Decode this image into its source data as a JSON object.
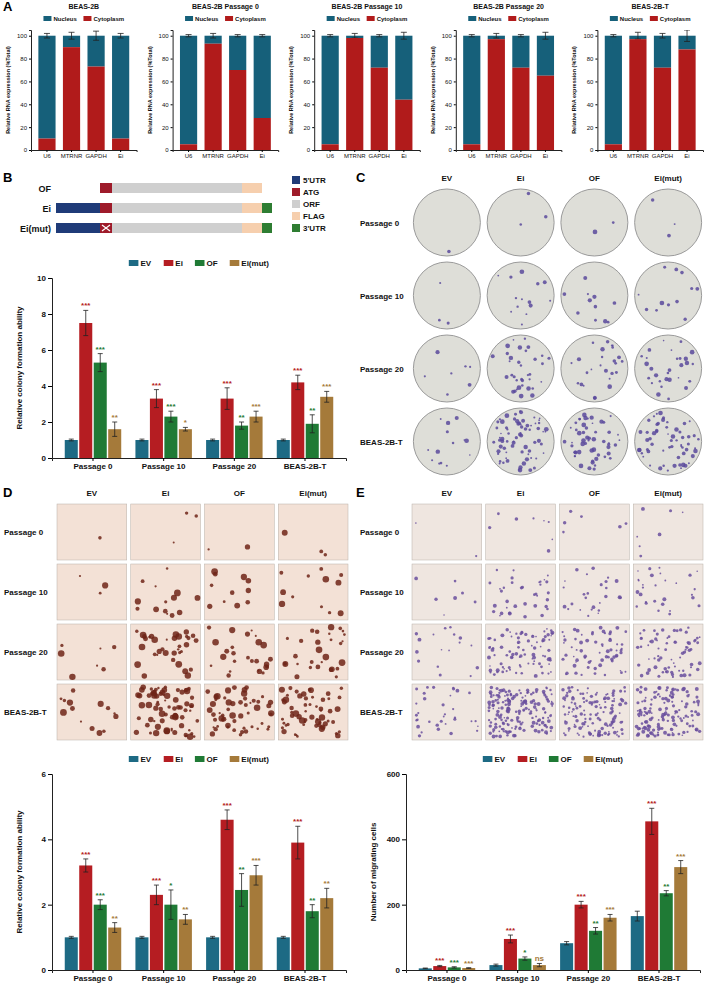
{
  "panel_labels": [
    "A",
    "B",
    "C",
    "D",
    "E"
  ],
  "chart_data": [
    {
      "type": "bar",
      "stacked": true,
      "title": "BEAS-2B",
      "categories": [
        "U6",
        "MTRNR",
        "GAPDH",
        "Ei"
      ],
      "series": [
        {
          "name": "Nucleus",
          "color": "#16607a",
          "values": [
            90,
            10,
            27,
            90
          ],
          "errors": [
            2,
            3,
            4,
            2
          ]
        },
        {
          "name": "Cytoplasm",
          "color": "#b11b1b",
          "values": [
            10,
            90,
            73,
            10
          ]
        }
      ],
      "ylim": [
        0,
        105
      ],
      "yticks": [
        0,
        20,
        40,
        60,
        80,
        100
      ],
      "y_label": "Relative RNA expression (%Total)",
      "legend": "top"
    },
    {
      "type": "bar",
      "stacked": true,
      "title": "BEAS-2B Passage 0",
      "categories": [
        "U6",
        "MTRNR",
        "GAPDH",
        "Ei"
      ],
      "series": [
        {
          "name": "Nucleus",
          "color": "#16607a",
          "values": [
            95,
            7,
            30,
            72
          ],
          "errors": [
            1,
            2,
            1,
            1
          ]
        },
        {
          "name": "Cytoplasm",
          "color": "#b11b1b",
          "values": [
            5,
            93,
            70,
            28
          ]
        }
      ],
      "ylim": [
        0,
        105
      ],
      "yticks": [
        0,
        20,
        40,
        60,
        80,
        100
      ],
      "y_label": "Relative RNA expression (%Total)",
      "legend": "top"
    },
    {
      "type": "bar",
      "stacked": true,
      "title": "BEAS-2B Passage 10",
      "categories": [
        "U6",
        "MTRNR",
        "GAPDH",
        "Ei"
      ],
      "series": [
        {
          "name": "Nucleus",
          "color": "#16607a",
          "values": [
            95,
            2,
            28,
            56
          ],
          "errors": [
            1,
            2,
            1,
            3
          ]
        },
        {
          "name": "Cytoplasm",
          "color": "#b11b1b",
          "values": [
            5,
            98,
            72,
            44
          ]
        }
      ],
      "ylim": [
        0,
        105
      ],
      "yticks": [
        0,
        20,
        40,
        60,
        80,
        100
      ],
      "y_label": "Relative RNA expression (%Total)",
      "legend": "top"
    },
    {
      "type": "bar",
      "stacked": true,
      "title": "BEAS-2B Passage 20",
      "categories": [
        "U6",
        "MTRNR",
        "GAPDH",
        "Ei"
      ],
      "series": [
        {
          "name": "Nucleus",
          "color": "#16607a",
          "values": [
            95,
            3,
            28,
            35
          ],
          "errors": [
            1,
            2,
            1,
            3
          ]
        },
        {
          "name": "Cytoplasm",
          "color": "#b11b1b",
          "values": [
            5,
            97,
            72,
            65
          ]
        }
      ],
      "ylim": [
        0,
        105
      ],
      "yticks": [
        0,
        20,
        40,
        60,
        80,
        100
      ],
      "y_label": "Relative RNA expression (%Total)",
      "legend": "top"
    },
    {
      "type": "bar",
      "stacked": true,
      "title": "BEAS-2B-T",
      "categories": [
        "U6",
        "MTRNR",
        "GAPDH",
        "Ei"
      ],
      "series": [
        {
          "name": "Nucleus",
          "color": "#16607a",
          "values": [
            95,
            3,
            28,
            12
          ],
          "errors": [
            1,
            3,
            2,
            5
          ]
        },
        {
          "name": "Cytoplasm",
          "color": "#b11b1b",
          "values": [
            5,
            97,
            72,
            88
          ]
        }
      ],
      "ylim": [
        0,
        105
      ],
      "yticks": [
        0,
        20,
        40,
        60,
        80,
        100
      ],
      "y_label": "Relative RNA expression (%Total)",
      "legend": "top"
    },
    {
      "type": "bar",
      "categories": [
        "Passage 0",
        "Passage 10",
        "Passage 20",
        "BEAS-2B-T"
      ],
      "series": [
        {
          "name": "EV",
          "color": "#1d6a84",
          "values": [
            1,
            1,
            1,
            1
          ],
          "errors": [
            0.05,
            0.05,
            0.05,
            0.05
          ]
        },
        {
          "name": "Ei",
          "color": "#b51d22",
          "values": [
            7.5,
            3.3,
            3.3,
            4.2
          ],
          "errors": [
            0.7,
            0.5,
            0.6,
            0.4
          ],
          "significance": [
            "***",
            "***",
            "***",
            "***"
          ]
        },
        {
          "name": "OF",
          "color": "#1f7a35",
          "values": [
            5.3,
            2.3,
            1.8,
            1.9
          ],
          "errors": [
            0.5,
            0.3,
            0.2,
            0.5
          ],
          "significance": [
            "***",
            "***",
            "**",
            "**"
          ]
        },
        {
          "name": "Ei(mut)",
          "color": "#a57a3a",
          "values": [
            1.6,
            1.6,
            2.3,
            3.4
          ],
          "errors": [
            0.4,
            0.1,
            0.3,
            0.3
          ],
          "significance": [
            "**",
            "*",
            "***",
            "***"
          ]
        }
      ],
      "ylim": [
        0,
        10
      ],
      "yticks": [
        0,
        2,
        4,
        6,
        8,
        10
      ],
      "y_label": "Relative colony formation ability",
      "legend": "top"
    },
    {
      "type": "bar",
      "categories": [
        "Passage 0",
        "Passage 10",
        "Passage 20",
        "BEAS-2B-T"
      ],
      "series": [
        {
          "name": "EV",
          "color": "#1d6a84",
          "values": [
            1,
            1,
            1,
            1
          ],
          "errors": [
            0.03,
            0.03,
            0.03,
            0.03
          ]
        },
        {
          "name": "Ei",
          "color": "#b51d22",
          "values": [
            3.2,
            2.3,
            4.6,
            3.9
          ],
          "errors": [
            0.2,
            0.3,
            0.3,
            0.5
          ],
          "significance": [
            "***",
            "***",
            "***",
            "***"
          ]
        },
        {
          "name": "OF",
          "color": "#1f7a35",
          "values": [
            2.0,
            2.0,
            2.45,
            1.8
          ],
          "errors": [
            0.15,
            0.45,
            0.5,
            0.2
          ],
          "significance": [
            "***",
            "*",
            "**",
            "**"
          ]
        },
        {
          "name": "Ei(mut)",
          "color": "#a57a3a",
          "values": [
            1.3,
            1.55,
            2.9,
            2.2
          ],
          "errors": [
            0.15,
            0.15,
            0.3,
            0.3
          ],
          "significance": [
            "**",
            "**",
            "***",
            "**"
          ]
        }
      ],
      "ylim": [
        0,
        6
      ],
      "yticks": [
        0,
        2,
        4,
        6
      ],
      "y_label": "Relative colony formation ability",
      "legend": "top"
    },
    {
      "type": "bar",
      "categories": [
        "Passage 0",
        "Passage 10",
        "Passage 20",
        "BEAS-2B-T"
      ],
      "series": [
        {
          "name": "EV",
          "color": "#1d6a84",
          "values": [
            5,
            15,
            82,
            165
          ],
          "errors": [
            1,
            3,
            5,
            15
          ]
        },
        {
          "name": "Ei",
          "color": "#b51d22",
          "values": [
            12,
            95,
            200,
            455
          ],
          "errors": [
            2,
            12,
            10,
            40
          ],
          "significance": [
            "***",
            "***",
            "***",
            "***"
          ]
        },
        {
          "name": "OF",
          "color": "#1f7a35",
          "values": [
            8,
            35,
            120,
            235
          ],
          "errors": [
            2,
            5,
            10,
            8
          ],
          "significance": [
            "***",
            "*",
            "**",
            "**"
          ]
        },
        {
          "name": "Ei(mut)",
          "color": "#a57a3a",
          "values": [
            6,
            15,
            160,
            315
          ],
          "errors": [
            1,
            5,
            10,
            20
          ],
          "significance": [
            "***",
            "ns",
            "***",
            "***"
          ]
        }
      ],
      "ylim": [
        0,
        600
      ],
      "yticks": [
        0,
        200,
        400,
        600
      ],
      "y_label": "Number of migrating cells",
      "legend": "top"
    }
  ],
  "construct_diagram": {
    "constructs": [
      {
        "name": "OF",
        "segments": [
          "ATG",
          "ORF",
          "FLAG"
        ]
      },
      {
        "name": "Ei",
        "segments": [
          "5'UTR",
          "ATG",
          "ORF",
          "FLAG",
          "3'UTR"
        ]
      },
      {
        "name": "Ei(mut)",
        "segments": [
          "5'UTR",
          "ATG",
          "ORF",
          "FLAG",
          "3'UTR"
        ],
        "mutated": "ATG"
      }
    ],
    "legend": [
      {
        "name": "5'UTR",
        "color": "#1f3b78"
      },
      {
        "name": "ATG",
        "color": "#9e1b2a"
      },
      {
        "name": "ORF",
        "color": "#cfcfcf"
      },
      {
        "name": "FLAG",
        "color": "#f6cfae"
      },
      {
        "name": "3'UTR",
        "color": "#2e7d32"
      }
    ]
  },
  "image_grids": [
    {
      "columns": [
        "EV",
        "Ei",
        "OF",
        "Ei(mut)"
      ],
      "rows": [
        "Passage 0",
        "Passage 10",
        "Passage 20",
        "BEAS-2B-T"
      ]
    },
    {
      "columns": [
        "EV",
        "Ei",
        "OF",
        "Ei(mut)"
      ],
      "rows": [
        "Passage 0",
        "Passage 10",
        "Passage 20",
        "BEAS-2B-T"
      ]
    },
    {
      "columns": [
        "EV",
        "Ei",
        "OF",
        "Ei(mut)"
      ],
      "rows": [
        "Passage 0",
        "Passage 10",
        "Passage 20",
        "BEAS-2B-T"
      ]
    }
  ]
}
